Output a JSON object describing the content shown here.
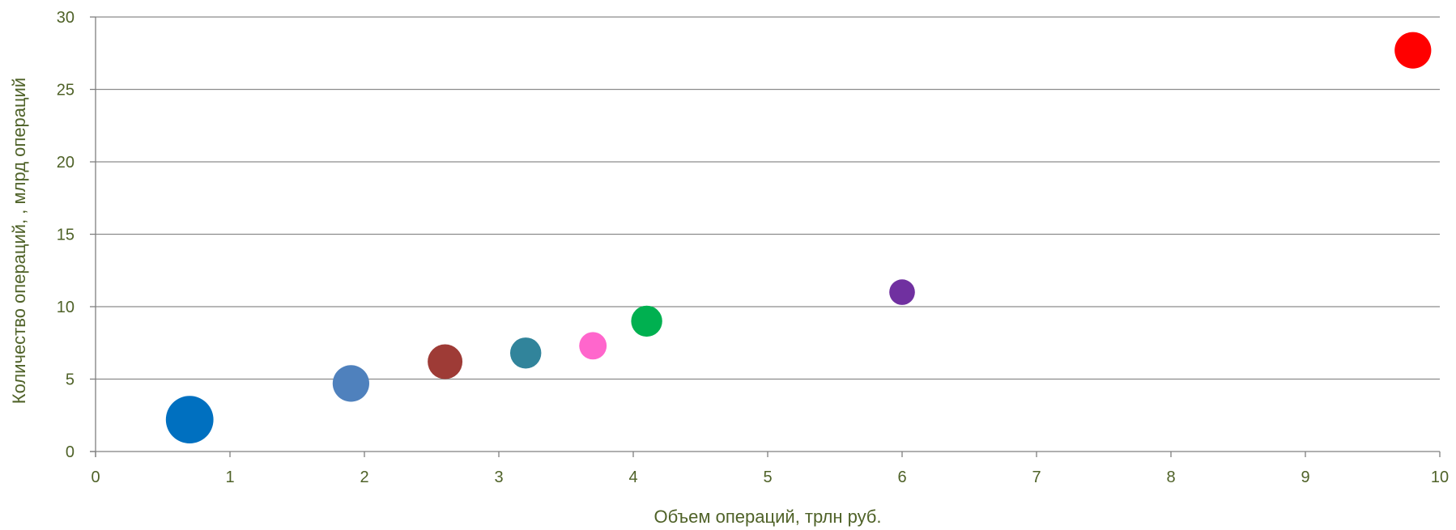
{
  "chart_data": {
    "type": "scatter",
    "title": "",
    "xlabel": "Объем операций, трлн руб.",
    "ylabel": "Количество операций, , млрд операций",
    "xlim": [
      0,
      10
    ],
    "ylim": [
      0,
      30
    ],
    "xticks": [
      0,
      1,
      2,
      3,
      4,
      5,
      6,
      7,
      8,
      9,
      10
    ],
    "yticks": [
      0,
      5,
      10,
      15,
      20,
      25,
      30
    ],
    "grid": "horizontal",
    "legend": "none",
    "points": [
      {
        "x": 0.7,
        "y": 2.2,
        "size": 2.6,
        "color": "#0070c0"
      },
      {
        "x": 1.9,
        "y": 4.7,
        "size": 2.0,
        "color": "#4f81bd"
      },
      {
        "x": 2.6,
        "y": 6.2,
        "size": 1.9,
        "color": "#9e3b36"
      },
      {
        "x": 3.2,
        "y": 6.8,
        "size": 1.7,
        "color": "#31849b"
      },
      {
        "x": 3.7,
        "y": 7.3,
        "size": 1.5,
        "color": "#ff66cc"
      },
      {
        "x": 4.1,
        "y": 9.0,
        "size": 1.7,
        "color": "#00b050"
      },
      {
        "x": 6.0,
        "y": 11.0,
        "size": 1.4,
        "color": "#7030a0"
      },
      {
        "x": 9.8,
        "y": 27.7,
        "size": 2.0,
        "color": "#ff0000"
      }
    ],
    "colors": {
      "text": "#4f6228",
      "grid": "#8c8c8c",
      "axis": "#7f7f7f"
    }
  }
}
